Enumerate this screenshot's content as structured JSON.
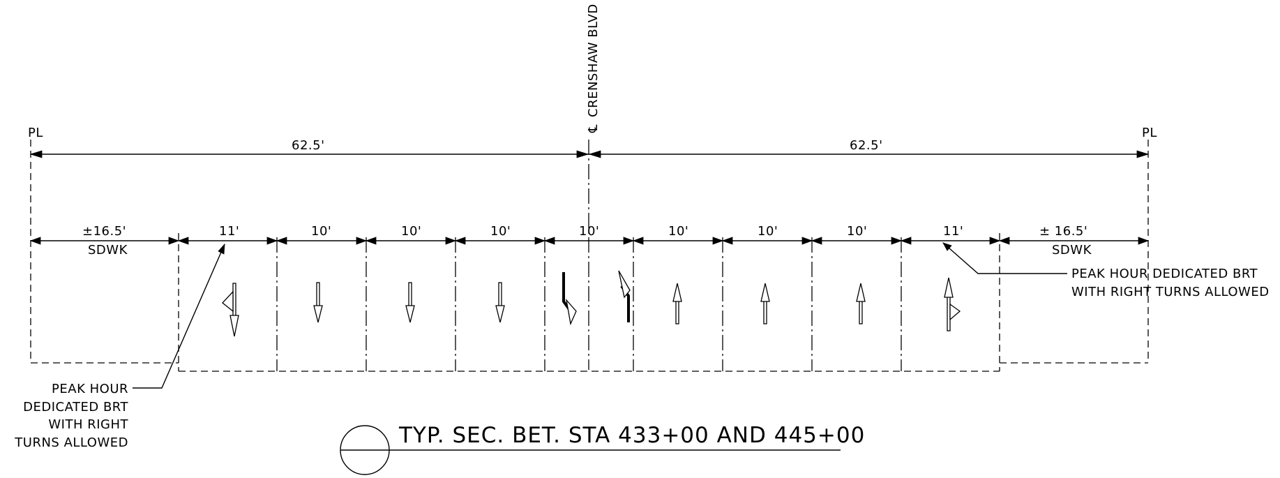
{
  "centerline_label": "CRENSHAW BLVD",
  "property_line": "PL",
  "half_widths": [
    "62.5'",
    "62.5'"
  ],
  "lanes": [
    "±16.5'",
    "11'",
    "10'",
    "10'",
    "10'",
    "10'",
    "10'",
    "10'",
    "10'",
    "11'",
    "± 16.5'"
  ],
  "sidewalk_label": "SDWK",
  "note_right": {
    "line1": "PEAK HOUR DEDICATED BRT",
    "line2": "WITH RIGHT TURNS ALLOWED"
  },
  "note_left": {
    "line1": "PEAK HOUR",
    "line2": "DEDICATED BRT",
    "line3": "WITH RIGHT",
    "line4": "TURNS ALLOWED"
  },
  "section_title": "TYP. SEC. BET. STA 433+00 AND 445+00",
  "lane_arrows": [
    "down-left-turn",
    "down",
    "down",
    "down",
    "down-right-turn",
    "up-left-turn",
    "up",
    "up",
    "up",
    "up-right-turn"
  ]
}
